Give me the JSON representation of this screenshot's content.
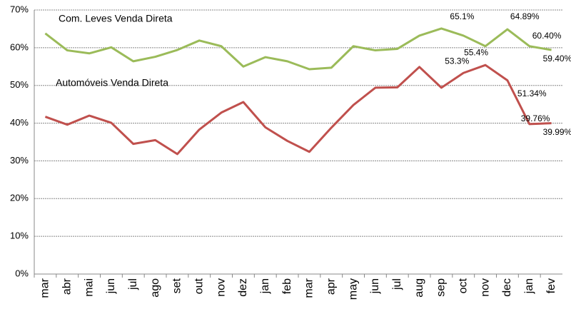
{
  "chart_data": {
    "type": "line",
    "categories": [
      "mar",
      "abr",
      "mai",
      "jun",
      "jul",
      "ago",
      "set",
      "out",
      "nov",
      "dez",
      "jan",
      "feb",
      "mar",
      "apr",
      "may",
      "jun",
      "jul",
      "aug",
      "sep",
      "oct",
      "nov",
      "dec",
      "jan",
      "fev"
    ],
    "series": [
      {
        "name": "Com. Leves Venda Direta",
        "color": "#9bbb59",
        "values": [
          63.8,
          59.3,
          58.5,
          60.1,
          56.4,
          57.6,
          59.4,
          61.9,
          60.4,
          55.0,
          57.5,
          56.4,
          54.3,
          54.7,
          60.4,
          59.3,
          59.7,
          63.2,
          65.1,
          63.2,
          60.4,
          64.89,
          60.4,
          59.4
        ],
        "value_labels": [
          null,
          null,
          null,
          null,
          null,
          null,
          null,
          null,
          null,
          null,
          null,
          null,
          null,
          null,
          null,
          null,
          null,
          null,
          "65.1%",
          null,
          null,
          "64.89%",
          "60.40%",
          "59.40%"
        ]
      },
      {
        "name": "Automóveis Venda Direta",
        "color": "#c0504d",
        "values": [
          41.7,
          39.6,
          42.0,
          40.1,
          34.5,
          35.5,
          31.8,
          38.3,
          42.8,
          45.6,
          38.9,
          35.3,
          32.4,
          38.8,
          44.8,
          49.4,
          49.5,
          54.9,
          49.4,
          53.3,
          55.4,
          51.34,
          39.76,
          39.99
        ],
        "value_labels": [
          null,
          null,
          null,
          null,
          null,
          null,
          null,
          null,
          null,
          null,
          null,
          null,
          null,
          null,
          null,
          null,
          null,
          null,
          null,
          "53.3%",
          "55.4%",
          "51.34%",
          "39.76%",
          "39.99%"
        ]
      }
    ],
    "ylim": [
      0,
      70
    ],
    "yticks": [
      {
        "value": 0,
        "label": "0%"
      },
      {
        "value": 10,
        "label": "10%"
      },
      {
        "value": 20,
        "label": "20%"
      },
      {
        "value": 30,
        "label": "30%"
      },
      {
        "value": 40,
        "label": "40%"
      },
      {
        "value": 50,
        "label": "50%"
      },
      {
        "value": 60,
        "label": "60%"
      },
      {
        "value": 70,
        "label": "70%"
      }
    ],
    "grid": true
  }
}
